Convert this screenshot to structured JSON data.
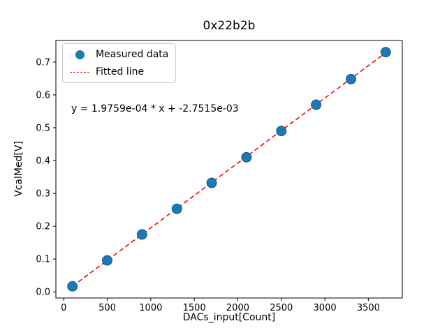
{
  "figure": {
    "background": "#ffffff"
  },
  "chart_data": {
    "type": "scatter",
    "title": "0x22b2b",
    "xlabel": "DACs_input[Count]",
    "ylabel": "VcalMed[V]",
    "annotation": "y = 1.9759e-04 * x + -2.7515e-03",
    "xlim": [
      -90,
      3890
    ],
    "ylim": [
      -0.0186,
      0.7656
    ],
    "x_ticks": [
      0,
      500,
      1000,
      1500,
      2000,
      2500,
      3000,
      3500
    ],
    "y_ticks": [
      0.0,
      0.1,
      0.2,
      0.3,
      0.4,
      0.5,
      0.6,
      0.7
    ],
    "grid": false,
    "legend_position": "upper left",
    "series": [
      {
        "name": "Measured data",
        "type": "scatter",
        "color": "#1f77b4",
        "marker": "circle",
        "x": [
          100,
          500,
          900,
          1300,
          1700,
          2100,
          2500,
          2900,
          3300,
          3700
        ],
        "y": [
          0.017,
          0.096,
          0.175,
          0.253,
          0.332,
          0.41,
          0.49,
          0.57,
          0.648,
          0.73
        ]
      },
      {
        "name": "Fitted line",
        "type": "line",
        "style": "dashed",
        "color": "#ff0000",
        "slope": 0.00019759,
        "intercept": -0.0027515,
        "x_range": [
          100,
          3700
        ]
      }
    ]
  }
}
